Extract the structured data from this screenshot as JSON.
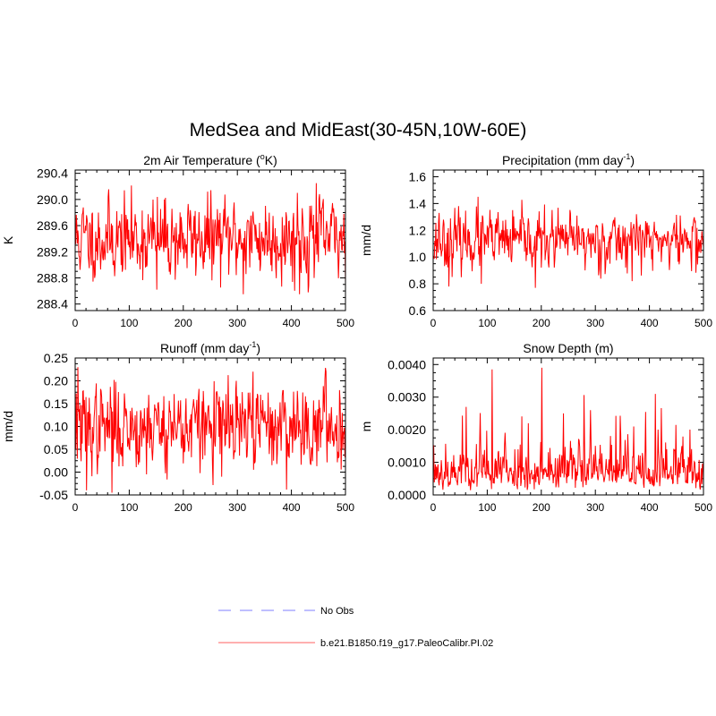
{
  "figure": {
    "title": "MedSea and MidEast(30-45N,10W-60E)"
  },
  "colors": {
    "model": "#ff0000",
    "obs": "#9999ff",
    "model_legend": "#ff8080"
  },
  "legend": {
    "placement": "bottom",
    "items": [
      {
        "label": "No Obs",
        "style": "dashed",
        "color": "#9999ff"
      },
      {
        "label": "b.e21.B1850.f19_g17.PaleoCalibr.PI.02",
        "style": "solid",
        "color": "#ff8080"
      }
    ]
  },
  "chart_data": [
    {
      "type": "line",
      "title": "2m Air Temperature (",
      "title_sup": "o",
      "title_end": "K)",
      "ylabel": "K",
      "xlim": [
        0,
        500
      ],
      "ylim": [
        288.3,
        290.45
      ],
      "xticks": [
        0,
        100,
        200,
        300,
        400,
        500
      ],
      "yticks": [
        288.4,
        288.8,
        289.2,
        289.6,
        290.0,
        290.4
      ],
      "yticklabels": [
        "288.4",
        "288.8",
        "289.2",
        "289.6",
        "290.0",
        "290.4"
      ],
      "series": [
        {
          "length": 500,
          "mean": 289.4,
          "sd": 0.3,
          "min": 288.55,
          "max": 290.25,
          "seed": 11,
          "peaks": [
            [
              445,
              290.25
            ],
            [
              410,
              290.1
            ],
            [
              500,
              290.05
            ],
            [
              310,
              288.55
            ],
            [
              414,
              288.55
            ],
            [
              150,
              288.62
            ]
          ]
        }
      ]
    },
    {
      "type": "line",
      "title": "Precipitation (mm day",
      "title_sup": "-1",
      "title_end": ")",
      "ylabel": "mm/d",
      "xlim": [
        0,
        500
      ],
      "ylim": [
        0.6,
        1.65
      ],
      "xticks": [
        0,
        100,
        200,
        300,
        400,
        500
      ],
      "yticks": [
        0.6,
        0.8,
        1.0,
        1.2,
        1.4,
        1.6
      ],
      "yticklabels": [
        "0.6",
        "0.8",
        "1.0",
        "1.2",
        "1.4",
        "1.6"
      ],
      "series": [
        {
          "length": 500,
          "mean": 1.12,
          "sd": 0.1,
          "min": 0.77,
          "max": 1.45,
          "seed": 23,
          "peaks": [
            [
              82,
              1.45
            ],
            [
              10,
              1.33
            ],
            [
              375,
              1.32
            ],
            [
              28,
              0.78
            ],
            [
              88,
              0.8
            ],
            [
              188,
              0.77
            ]
          ]
        }
      ]
    },
    {
      "type": "line",
      "title": "Runoff (mm day",
      "title_sup": "-1",
      "title_end": ")",
      "ylabel": "mm/d",
      "xlim": [
        0,
        500
      ],
      "ylim": [
        -0.05,
        0.25
      ],
      "xticks": [
        0,
        100,
        200,
        300,
        400,
        500
      ],
      "yticks": [
        -0.05,
        0.0,
        0.05,
        0.1,
        0.15,
        0.2,
        0.25
      ],
      "yticklabels": [
        "-0.05",
        "0.00",
        "0.05",
        "0.10",
        "0.15",
        "0.20",
        "0.25"
      ],
      "series": [
        {
          "length": 500,
          "mean": 0.1,
          "sd": 0.045,
          "min": -0.045,
          "max": 0.23,
          "seed": 37,
          "peaks": [
            [
              4,
              0.23
            ],
            [
              328,
              0.22
            ],
            [
              463,
              0.22
            ],
            [
              20,
              -0.04
            ],
            [
              67,
              -0.045
            ],
            [
              270,
              -0.01
            ]
          ]
        }
      ]
    },
    {
      "type": "line",
      "title": "Snow Depth (m)",
      "title_sup": "",
      "title_end": "",
      "ylabel": "m",
      "xlim": [
        0,
        500
      ],
      "ylim": [
        0.0,
        0.0042
      ],
      "xticks": [
        0,
        100,
        200,
        300,
        400,
        500
      ],
      "yticks": [
        0.0,
        0.001,
        0.002,
        0.003,
        0.004
      ],
      "yticklabels": [
        "0.0000",
        "0.0010",
        "0.0020",
        "0.0030",
        "0.0040"
      ],
      "series": [
        {
          "length": 500,
          "mean": 0.0007,
          "sd": 0.0003,
          "min": 8e-05,
          "max": 0.0039,
          "seed": 53,
          "skew": true,
          "peaks": [
            [
              108,
              0.00385
            ],
            [
              200,
              0.0039
            ],
            [
              60,
              0.0027
            ],
            [
              240,
              0.0025
            ],
            [
              290,
              0.0026
            ],
            [
              410,
              0.0031
            ],
            [
              175,
              0.0022
            ],
            [
              370,
              0.0021
            ]
          ]
        }
      ]
    }
  ]
}
